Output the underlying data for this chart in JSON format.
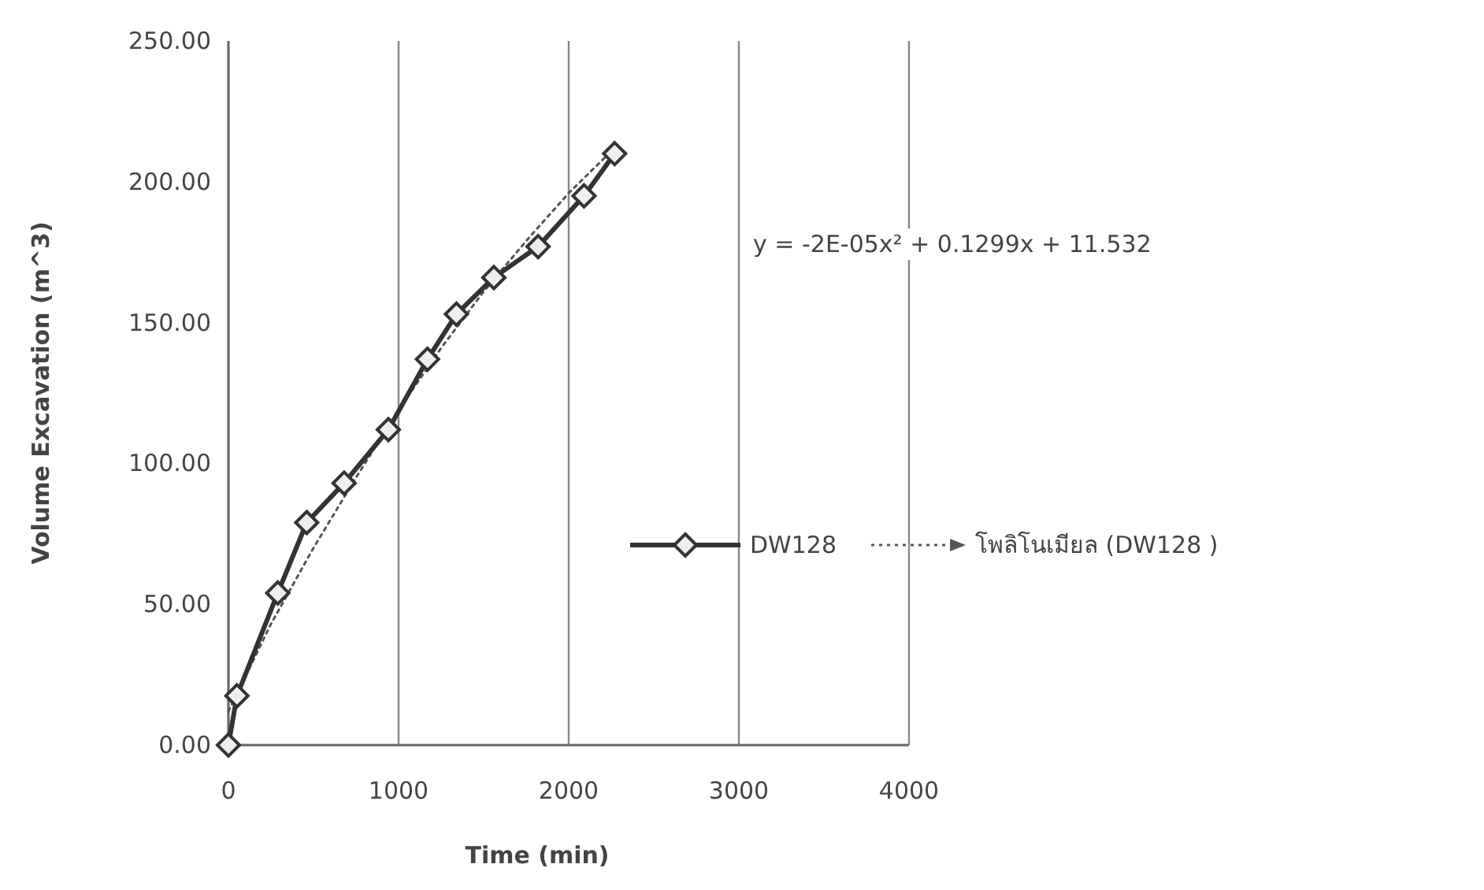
{
  "chart_data": {
    "type": "line",
    "xlabel": "Time (min)",
    "ylabel": "Volume Excavation (m^3)",
    "xlim": [
      0,
      4000
    ],
    "xticks": [
      0,
      1000,
      2000,
      3000,
      4000
    ],
    "ylim": [
      0,
      250
    ],
    "yticks": [
      {
        "value": 0,
        "label": "0.00"
      },
      {
        "value": 50,
        "label": "50.00"
      },
      {
        "value": 100,
        "label": "100.00"
      },
      {
        "value": 150,
        "label": "150.00"
      },
      {
        "value": 200,
        "label": "200.00"
      },
      {
        "value": 250,
        "label": "250.00"
      }
    ],
    "grid": "x",
    "legend": "right",
    "series": [
      {
        "name": "DW128",
        "color": "#333333",
        "marker": "diamond",
        "line_style": "solid",
        "x": [
          0,
          50,
          290,
          460,
          680,
          940,
          1170,
          1340,
          1560,
          1820,
          2090,
          2270
        ],
        "values": [
          0,
          17.5,
          54,
          79,
          93,
          112,
          137,
          153,
          166,
          177,
          195,
          210
        ]
      },
      {
        "name": "โพลิโนเมียล (DW128 )",
        "color": "#555555",
        "marker": "none",
        "line_style": "dotted",
        "x": [
          0,
          250,
          500,
          750,
          1000,
          1250,
          1500,
          1750,
          2000,
          2270
        ],
        "values": [
          12,
          43,
          70,
          95,
          119,
          141,
          161,
          179,
          196,
          212
        ]
      }
    ],
    "annotations": [
      "y = -2E-05x² + 0.1299x + 11.532"
    ]
  }
}
